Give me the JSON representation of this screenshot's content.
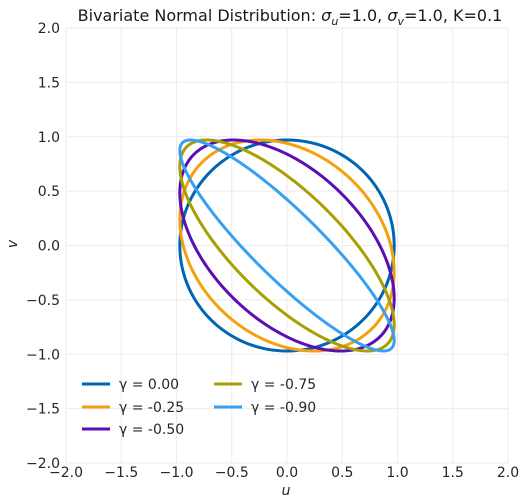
{
  "chart_data": {
    "type": "line",
    "title": {
      "prefix": "Bivariate Normal Distribution: ",
      "sigma_u_label": "σ",
      "sigma_u_sub": "u",
      "sigma_u_value": "=1.0, ",
      "sigma_v_label": "σ",
      "sigma_v_sub": "v",
      "sigma_v_value": "=1.0, K=0.1"
    },
    "xlabel": "u",
    "ylabel": "v",
    "xlim": [
      -2.0,
      2.0
    ],
    "ylim": [
      -2.0,
      2.0
    ],
    "xticks": [
      -2.0,
      -1.5,
      -1.0,
      -0.5,
      0.0,
      0.5,
      1.0,
      1.5,
      2.0
    ],
    "yticks": [
      -2.0,
      -1.5,
      -1.0,
      -0.5,
      0.0,
      0.5,
      1.0,
      1.5,
      2.0
    ],
    "xtick_labels": [
      "−2.0",
      "−1.5",
      "−1.0",
      "−0.5",
      "0.0",
      "0.5",
      "1.0",
      "1.5",
      "2.0"
    ],
    "ytick_labels": [
      "−2.0",
      "−1.5",
      "−1.0",
      "−0.5",
      "0.0",
      "0.5",
      "1.0",
      "1.5",
      "2.0"
    ],
    "grid": true,
    "legend_position": "lower-left",
    "series": [
      {
        "name": "γ = 0.00",
        "gamma": 0.0,
        "color": "#0066b3"
      },
      {
        "name": "γ = -0.25",
        "gamma": -0.25,
        "color": "#f5a00f"
      },
      {
        "name": "γ = -0.50",
        "gamma": -0.5,
        "color": "#5a0fb4"
      },
      {
        "name": "γ = -0.75",
        "gamma": -0.75,
        "color": "#a8a000"
      },
      {
        "name": "γ = -0.90",
        "gamma": -0.9,
        "color": "#38a0f0"
      }
    ]
  }
}
